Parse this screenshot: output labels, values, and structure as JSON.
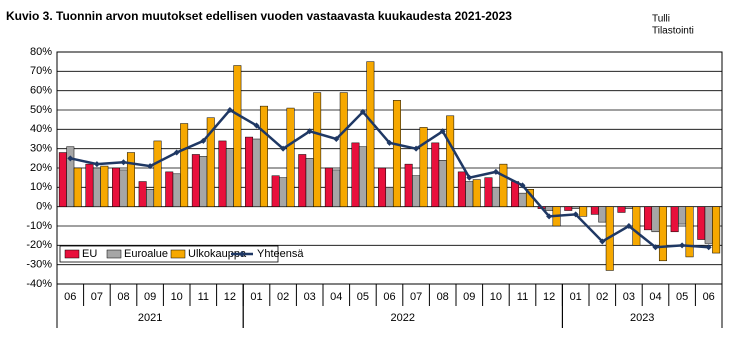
{
  "chart_data": {
    "type": "bar_line",
    "title": "Kuvio 3. Tuonnin arvon muutokset edellisen vuoden vastaavasta kuukaudesta 2021-2023",
    "source": [
      "Tulli",
      "Tilastointi"
    ],
    "categories": [
      "06",
      "07",
      "08",
      "09",
      "10",
      "11",
      "12",
      "01",
      "02",
      "03",
      "04",
      "05",
      "06",
      "07",
      "08",
      "09",
      "10",
      "11",
      "12",
      "01",
      "02",
      "03",
      "04",
      "05",
      "06"
    ],
    "year_groups": [
      {
        "label": "2021",
        "months": 7
      },
      {
        "label": "2022",
        "months": 12
      },
      {
        "label": "2023",
        "months": 6
      }
    ],
    "series": [
      {
        "name": "EU",
        "type": "bar",
        "color": "#e8103c",
        "values": [
          28,
          22,
          20,
          13,
          18,
          27,
          34,
          36,
          16,
          27,
          20,
          33,
          20,
          22,
          33,
          18,
          15,
          13,
          -1,
          -2,
          -4,
          -3,
          -12,
          -13,
          -17
        ]
      },
      {
        "name": "Euroalue",
        "type": "bar",
        "color": "#a6a6a6",
        "values": [
          31,
          20,
          19,
          9,
          17,
          26,
          30,
          35,
          15,
          25,
          19,
          31,
          10,
          16,
          24,
          13,
          10,
          7,
          -2,
          -1,
          -8,
          -1,
          -13,
          -9,
          -19
        ]
      },
      {
        "name": "Ulkokauppa",
        "type": "bar",
        "color": "#f6a800",
        "values": [
          20,
          21,
          28,
          34,
          43,
          46,
          73,
          52,
          51,
          59,
          59,
          75,
          55,
          41,
          47,
          14,
          22,
          9,
          -10,
          -5,
          -33,
          -20,
          -28,
          -26,
          -24
        ]
      },
      {
        "name": "Yhteensä",
        "type": "line",
        "color": "#1f3864",
        "values": [
          25,
          22,
          23,
          21,
          28,
          34,
          50,
          42,
          30,
          39,
          35,
          49,
          33,
          30,
          39,
          15,
          18,
          11,
          -5,
          -4,
          -18,
          -10,
          -21,
          -20,
          -21
        ]
      }
    ],
    "ylim": [
      -40,
      80
    ],
    "yticks": [
      {
        "value": -40,
        "label": "-40%"
      },
      {
        "value": -30,
        "label": "-30%"
      },
      {
        "value": -20,
        "label": "-20%"
      },
      {
        "value": -10,
        "label": "-10%"
      },
      {
        "value": 0,
        "label": "0%"
      },
      {
        "value": 10,
        "label": "10%"
      },
      {
        "value": 20,
        "label": "20%"
      },
      {
        "value": 30,
        "label": "30%"
      },
      {
        "value": 40,
        "label": "40%"
      },
      {
        "value": 50,
        "label": "50%"
      },
      {
        "value": 60,
        "label": "60%"
      },
      {
        "value": 70,
        "label": "70%"
      },
      {
        "value": 80,
        "label": "80%"
      }
    ],
    "grid": true,
    "legend": "lower left"
  }
}
